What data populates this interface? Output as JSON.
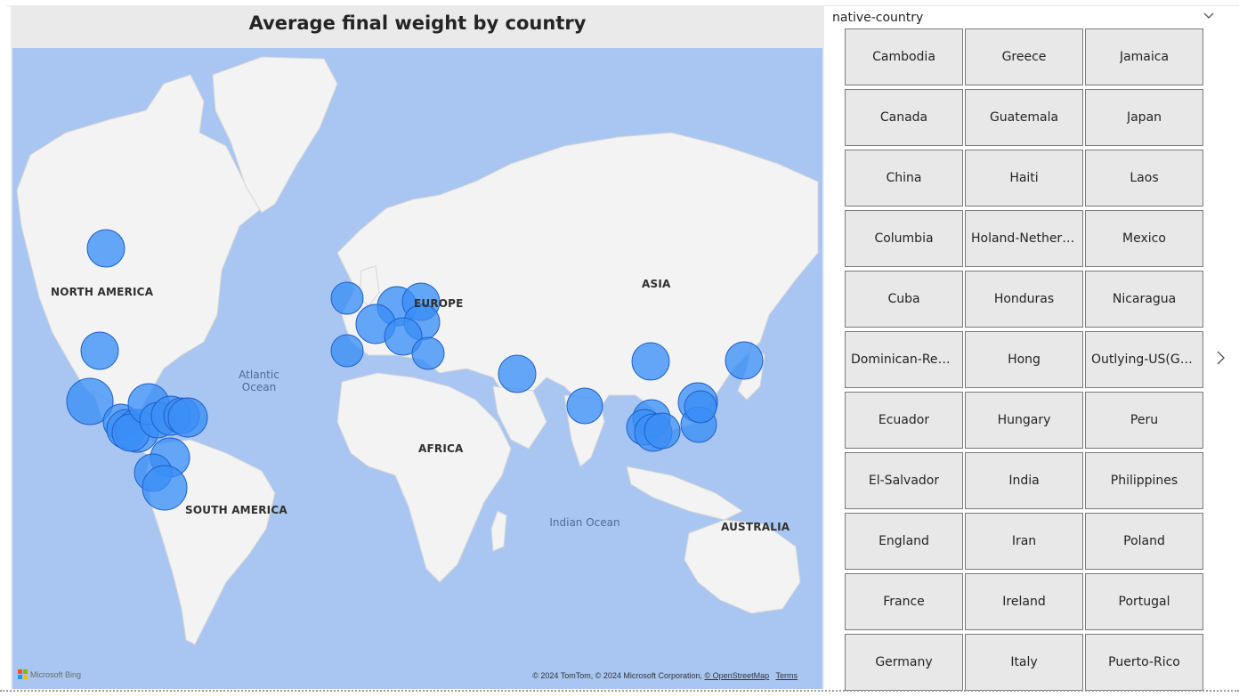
{
  "map": {
    "title": "Average final weight by country",
    "continents": {
      "north_america": "NORTH AMERICA",
      "south_america": "SOUTH AMERICA",
      "europe": "EUROPE",
      "africa": "AFRICA",
      "asia": "ASIA",
      "australia": "AUSTRALIA"
    },
    "oceans": {
      "atlantic": "Atlantic Ocean",
      "indian": "Indian Ocean"
    },
    "bing_logo": "Microsoft Bing",
    "attribution": "© 2024 TomTom, © 2024 Microsoft Corporation,",
    "attribution_osm": "© OpenStreetMap",
    "attribution_terms": "Terms",
    "colors": {
      "water": "#a9c6f2",
      "land": "#f2f2f2",
      "bubble": "#3a8ef6",
      "bubble_border": "#1f5fc8"
    }
  },
  "slicer": {
    "title": "native-country",
    "tiles": [
      "Cambodia",
      "Greece",
      "Jamaica",
      "Canada",
      "Guatemala",
      "Japan",
      "China",
      "Haiti",
      "Laos",
      "Columbia",
      "Holand-Netherl...",
      "Mexico",
      "Cuba",
      "Honduras",
      "Nicaragua",
      "Dominican-Rep...",
      "Hong",
      "Outlying-US(Gu...",
      "Ecuador",
      "Hungary",
      "Peru",
      "El-Salvador",
      "India",
      "Philippines",
      "England",
      "Iran",
      "Poland",
      "France",
      "Ireland",
      "Portugal",
      "Germany",
      "Italy",
      "Puerto-Rico"
    ]
  }
}
